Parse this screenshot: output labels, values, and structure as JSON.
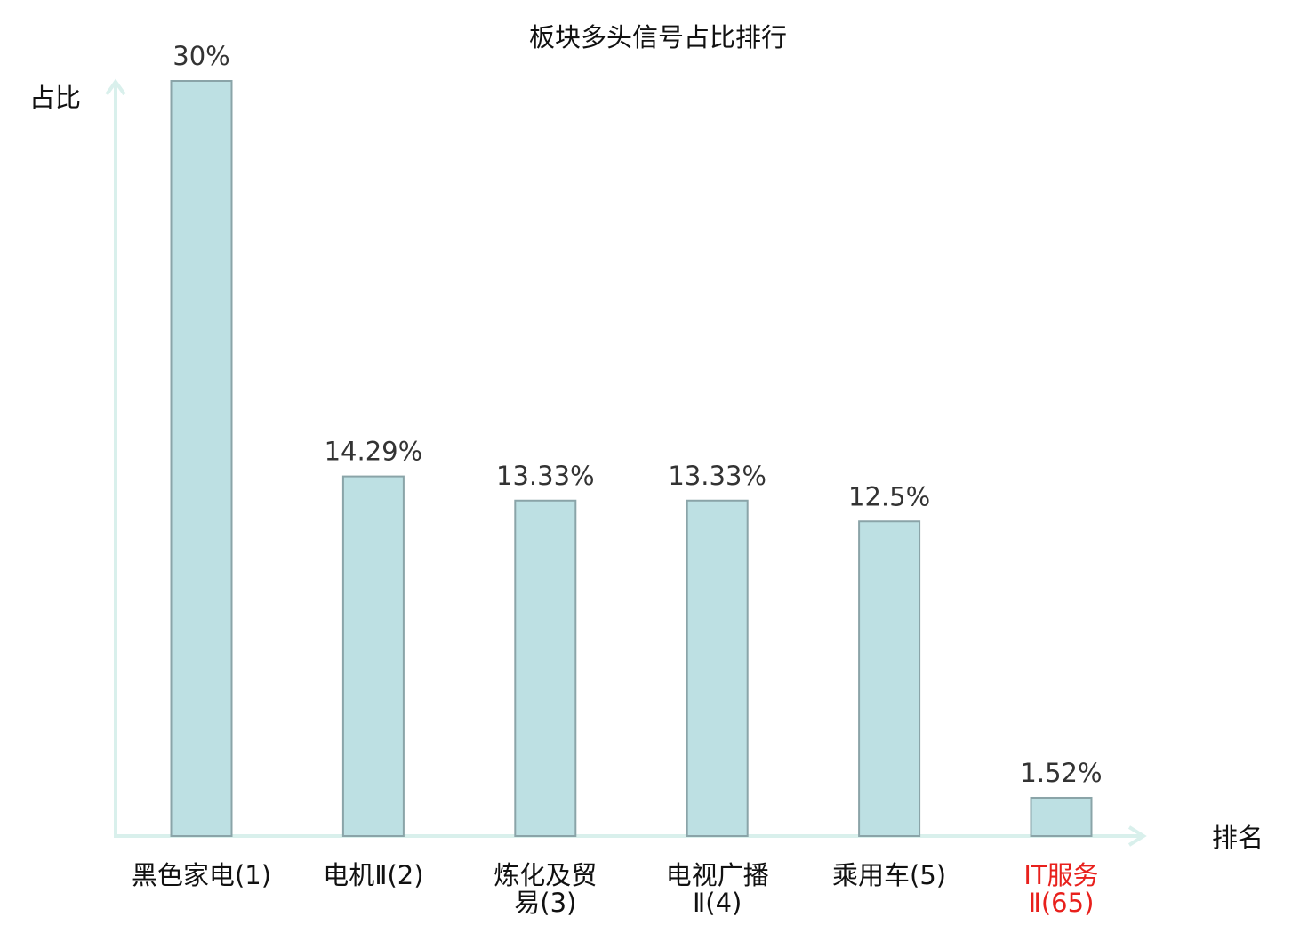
{
  "chart_data": {
    "type": "bar",
    "title": "板块多头信号占比排行",
    "ylabel": "占比",
    "xlabel": "排名",
    "categories": [
      {
        "lines": [
          "黑色家电(1)"
        ],
        "highlight": false
      },
      {
        "lines": [
          "电机Ⅱ(2)"
        ],
        "highlight": false
      },
      {
        "lines": [
          "炼化及贸",
          "易(3)"
        ],
        "highlight": false
      },
      {
        "lines": [
          "电视广播",
          "Ⅱ(4)"
        ],
        "highlight": false
      },
      {
        "lines": [
          "乘用车(5)"
        ],
        "highlight": false
      },
      {
        "lines": [
          "IT服务",
          "Ⅱ(65)"
        ],
        "highlight": true
      }
    ],
    "values": [
      30,
      14.29,
      13.33,
      13.33,
      12.5,
      1.52
    ],
    "value_labels": [
      "30%",
      "14.29%",
      "13.33%",
      "13.33%",
      "12.5%",
      "1.52%"
    ],
    "ylim": [
      0,
      30
    ],
    "grid": false,
    "colors": {
      "bar_fill": "#bde0e3",
      "bar_stroke": "#8aa4a8",
      "axis": "#d9f0ec",
      "highlight_text": "#e8201c",
      "text": "#111111"
    }
  }
}
